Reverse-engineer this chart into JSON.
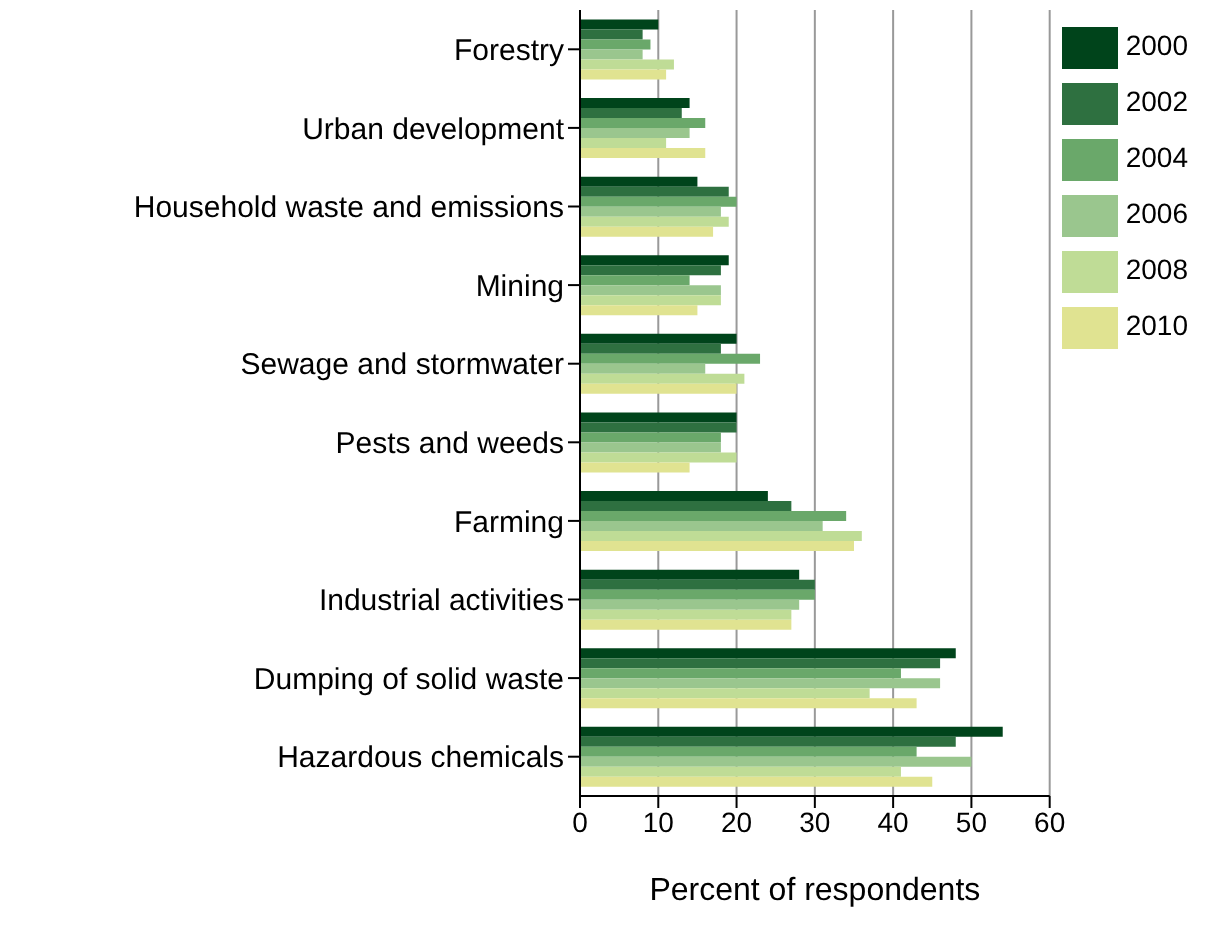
{
  "chart_data": {
    "type": "bar",
    "orientation": "horizontal",
    "xlabel": "Percent of respondents",
    "categories": [
      "Forestry",
      "Urban development",
      "Household waste and emissions",
      "Mining",
      "Sewage and stormwater",
      "Pests and weeds",
      "Farming",
      "Industrial activities",
      "Dumping of solid waste",
      "Hazardous chemicals"
    ],
    "series": [
      {
        "name": "2000",
        "color": "#00441b",
        "values": [
          10,
          14,
          15,
          19,
          20,
          20,
          24,
          28,
          48,
          54
        ]
      },
      {
        "name": "2002",
        "color": "#2e7040",
        "values": [
          8,
          13,
          19,
          18,
          18,
          20,
          27,
          30,
          46,
          48
        ]
      },
      {
        "name": "2004",
        "color": "#6aa86a",
        "values": [
          9,
          16,
          20,
          14,
          23,
          18,
          34,
          30,
          41,
          43
        ]
      },
      {
        "name": "2006",
        "color": "#9ac68e",
        "values": [
          8,
          14,
          18,
          18,
          16,
          18,
          31,
          28,
          46,
          50
        ]
      },
      {
        "name": "2008",
        "color": "#bfdc96",
        "values": [
          12,
          11,
          19,
          18,
          21,
          20,
          36,
          27,
          37,
          41
        ]
      },
      {
        "name": "2010",
        "color": "#e0e391",
        "values": [
          11,
          16,
          17,
          15,
          20,
          14,
          35,
          27,
          43,
          45
        ]
      }
    ],
    "xlim": [
      0,
      60
    ],
    "xticks": [
      0,
      10,
      20,
      30,
      40,
      50,
      60
    ],
    "grid": "x",
    "legend": "top right"
  }
}
